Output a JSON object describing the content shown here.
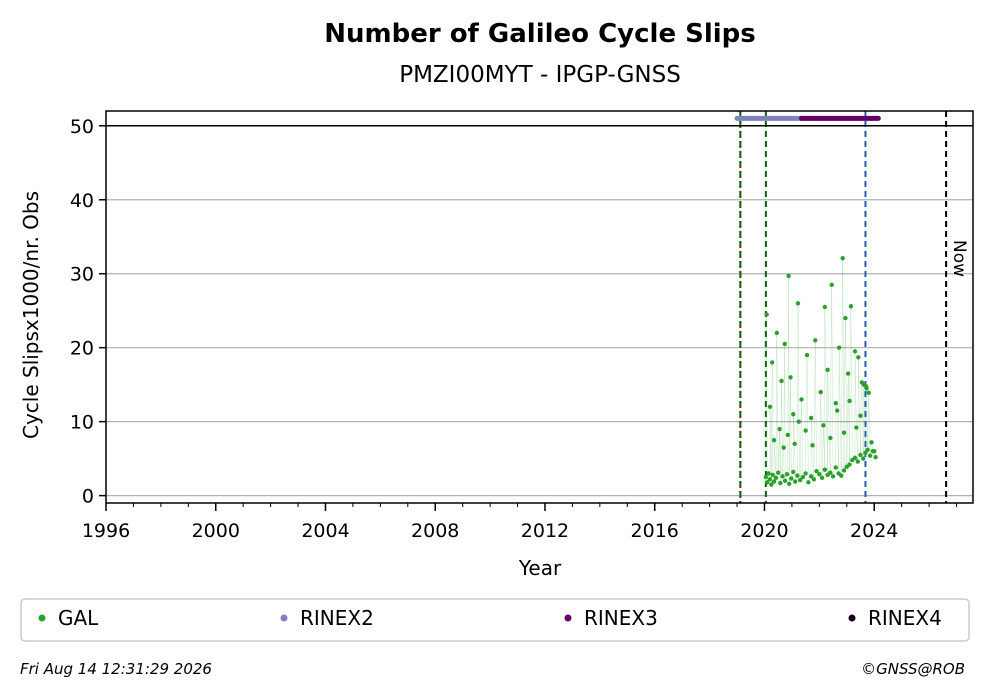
{
  "chart_data": {
    "type": "scatter",
    "title": "Number of Galileo Cycle Slips",
    "subtitle": "PMZI00MYT - IPGP-GNSS",
    "xlabel": "Year",
    "ylabel": "Cycle Slipsx1000/nr. Obs",
    "xlim": [
      1996.0,
      2027.6
    ],
    "ylim": [
      -1,
      52
    ],
    "x_ticks": [
      1996,
      2000,
      2004,
      2008,
      2012,
      2016,
      2020,
      2024
    ],
    "x_tick_labels": [
      "1996",
      "2000",
      "2004",
      "2008",
      "2012",
      "2016",
      "2020",
      "2024"
    ],
    "y_ticks": [
      0,
      10,
      20,
      30,
      40,
      50
    ],
    "y_tick_labels": [
      "0",
      "10",
      "20",
      "30",
      "40",
      "50"
    ],
    "grid": "horizontal",
    "cap_line": 50,
    "vertical_lines": [
      {
        "x": 2019.12,
        "color": "#cc0000",
        "style": "dotted"
      },
      {
        "x": 2019.12,
        "color": "#006400",
        "style": "dashed"
      },
      {
        "x": 2020.05,
        "color": "#006400",
        "style": "dashed"
      },
      {
        "x": 2023.68,
        "color": "#1f5fb4",
        "style": "dashed"
      },
      {
        "x": 2026.62,
        "color": "#000000",
        "style": "dashed",
        "label": "Now"
      }
    ],
    "rinex_bars": [
      {
        "name": "RINEX2",
        "x0": 2019.0,
        "x1": 2021.35,
        "y": 51,
        "color": "#8080c0"
      },
      {
        "name": "RINEX3",
        "x0": 2021.35,
        "x1": 2024.15,
        "y": 51,
        "color": "#660066"
      }
    ],
    "series": [
      {
        "name": "GAL",
        "color": "#2ca02c",
        "x": [
          2020.05,
          2020.1,
          2020.15,
          2020.2,
          2020.25,
          2020.3,
          2020.35,
          2020.42,
          2020.5,
          2020.58,
          2020.66,
          2020.75,
          2020.82,
          2020.9,
          2020.98,
          2021.05,
          2021.12,
          2021.2,
          2021.3,
          2021.4,
          2021.5,
          2021.6,
          2021.7,
          2021.8,
          2021.9,
          2022.0,
          2022.1,
          2022.2,
          2022.3,
          2022.4,
          2022.5,
          2022.6,
          2022.7,
          2022.8,
          2022.9,
          2023.0,
          2023.1,
          2023.2,
          2023.3,
          2023.4,
          2023.5,
          2023.6,
          2023.68,
          2023.76,
          2023.85,
          2023.95,
          2024.05,
          2020.08,
          2020.2,
          2020.28,
          2020.45,
          2020.62,
          2020.74,
          2020.88,
          2020.95,
          2021.05,
          2021.22,
          2021.35,
          2021.55,
          2021.7,
          2021.85,
          2022.05,
          2022.2,
          2022.3,
          2022.45,
          2022.6,
          2022.72,
          2022.85,
          2022.95,
          2023.05,
          2023.15,
          2023.3,
          2023.42,
          2023.55,
          2023.7,
          2023.8,
          2020.35,
          2020.55,
          2020.7,
          2020.85,
          2021.1,
          2021.25,
          2021.5,
          2021.75,
          2022.15,
          2022.4,
          2022.65,
          2022.9,
          2023.1,
          2023.35,
          2023.5,
          2023.62,
          2023.72,
          2023.9,
          2024.0
        ],
        "y": [
          2.5,
          1.8,
          3.0,
          2.2,
          1.5,
          2.8,
          1.9,
          2.4,
          3.1,
          1.7,
          2.6,
          2.0,
          2.9,
          1.6,
          2.3,
          3.2,
          1.9,
          2.7,
          2.1,
          2.5,
          3.0,
          1.8,
          2.6,
          2.2,
          3.3,
          2.9,
          2.4,
          3.5,
          2.8,
          3.1,
          2.6,
          3.8,
          3.0,
          2.7,
          3.4,
          3.9,
          4.2,
          4.8,
          5.1,
          4.6,
          5.5,
          5.0,
          5.8,
          6.2,
          5.4,
          6.0,
          5.2,
          24.5,
          12.0,
          18.0,
          22.0,
          15.5,
          20.5,
          29.7,
          16.0,
          11.0,
          26.0,
          13.0,
          19.0,
          10.5,
          21.0,
          14.0,
          25.5,
          17.0,
          28.5,
          12.5,
          20.0,
          32.1,
          24.0,
          16.5,
          25.6,
          19.5,
          18.7,
          15.3,
          14.8,
          13.9,
          7.5,
          9.0,
          6.5,
          8.2,
          7.0,
          10.0,
          8.8,
          6.8,
          9.5,
          7.8,
          11.5,
          8.5,
          12.8,
          9.2,
          10.8,
          15.0,
          14.5,
          7.2,
          6.0
        ]
      },
      {
        "name": "RINEX2",
        "color": "#8080c0",
        "x": [],
        "y": []
      },
      {
        "name": "RINEX3",
        "color": "#660066",
        "x": [],
        "y": []
      },
      {
        "name": "RINEX4",
        "color": "#1a0020",
        "x": [],
        "y": []
      }
    ]
  },
  "footer": {
    "timestamp": "Fri Aug 14 12:31:29 2026",
    "credit": "©GNSS@ROB"
  }
}
